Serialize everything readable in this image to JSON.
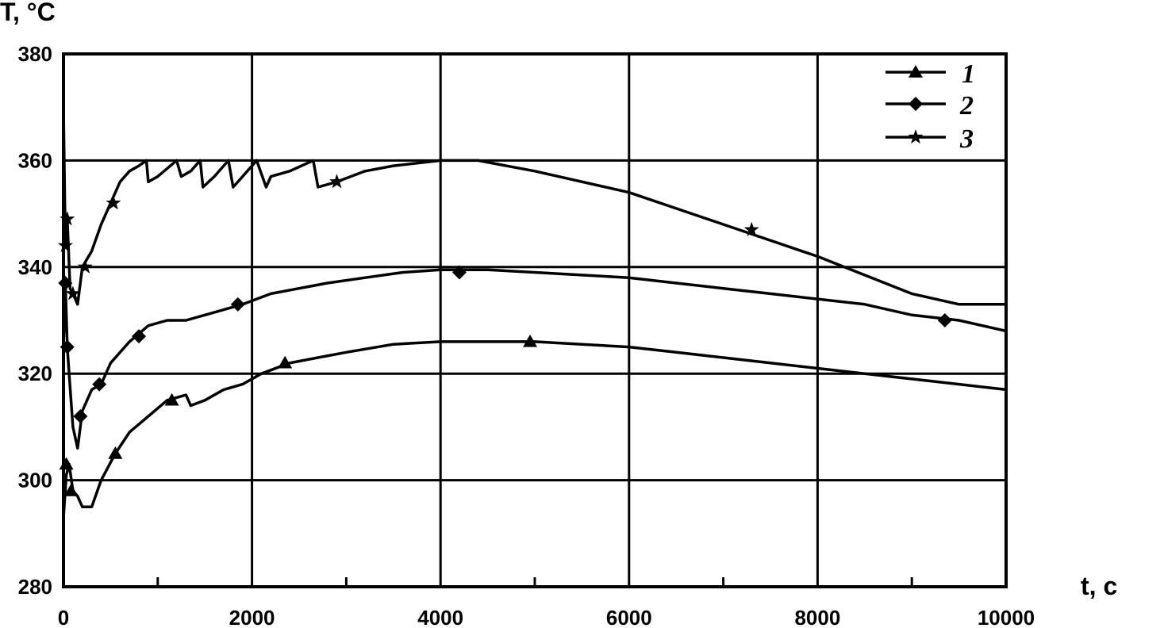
{
  "chart_data": {
    "type": "line",
    "ylabel": "T, °C",
    "xlabel": "t, c",
    "xlim": [
      0,
      10000
    ],
    "ylim": [
      280,
      380
    ],
    "x_ticks": [
      0,
      2000,
      4000,
      6000,
      8000,
      10000
    ],
    "y_ticks": [
      280,
      300,
      320,
      340,
      360,
      380
    ],
    "x_tick_labels": [
      "0",
      "2000",
      "4000",
      "6000",
      "8000",
      "10000"
    ],
    "y_tick_labels": [
      "280",
      "300",
      "320",
      "340",
      "360",
      "380"
    ],
    "grid": true,
    "legend_position": "top-right",
    "series": [
      {
        "name": "1",
        "marker": "triangle",
        "x": [
          0,
          30,
          60,
          100,
          150,
          200,
          300,
          400,
          550,
          700,
          900,
          1100,
          1300,
          1350,
          1500,
          1700,
          1900,
          2100,
          2400,
          2700,
          3000,
          3500,
          4000,
          4500,
          5000,
          5500,
          6000,
          6500,
          7000,
          7500,
          8000,
          8500,
          9000,
          9500,
          10000
        ],
        "y": [
          293,
          301,
          303,
          298,
          297,
          295,
          295,
          300,
          305,
          309,
          312,
          315,
          316,
          314,
          315,
          317,
          318,
          320,
          322,
          323,
          324,
          325.5,
          326,
          326,
          326,
          325.5,
          325,
          324,
          323,
          322,
          321,
          320,
          319,
          318,
          317
        ],
        "marker_x": [
          30,
          80,
          550,
          1150,
          2350,
          4950
        ],
        "marker_y": [
          303,
          298,
          305,
          315,
          322,
          326
        ]
      },
      {
        "name": "2",
        "marker": "diamond",
        "x": [
          0,
          20,
          40,
          60,
          100,
          150,
          200,
          300,
          400,
          500,
          700,
          900,
          1100,
          1300,
          1500,
          1700,
          1900,
          2200,
          2500,
          2800,
          3200,
          3600,
          4000,
          4500,
          5000,
          5500,
          6000,
          6500,
          7000,
          7500,
          8000,
          8500,
          9000,
          9500,
          10000
        ],
        "y": [
          325,
          337,
          325,
          320,
          310,
          306,
          313,
          317,
          318,
          322,
          326,
          329,
          330,
          330,
          331,
          332,
          333,
          335,
          336,
          337,
          338,
          339,
          339.5,
          339.5,
          339,
          338.5,
          338,
          337,
          336,
          335,
          334,
          333,
          331,
          330,
          328
        ],
        "marker_x": [
          20,
          40,
          180,
          380,
          800,
          1850,
          4200,
          9350
        ],
        "marker_y": [
          337,
          325,
          312,
          318,
          327,
          333,
          339,
          330
        ]
      },
      {
        "name": "3",
        "marker": "star",
        "x": [
          0,
          20,
          40,
          70,
          100,
          150,
          200,
          300,
          400,
          500,
          600,
          700,
          800,
          880,
          900,
          1000,
          1200,
          1250,
          1350,
          1450,
          1480,
          1600,
          1750,
          1800,
          1900,
          2050,
          2150,
          2200,
          2400,
          2650,
          2700,
          2900,
          3200,
          3500,
          4000,
          4400,
          5000,
          6000,
          7000,
          8000,
          9000,
          9500,
          10000
        ],
        "y": [
          370,
          344,
          349,
          336,
          335,
          333,
          340,
          343,
          348,
          352,
          356,
          358,
          359,
          360,
          356,
          357,
          360,
          357,
          358,
          360,
          355,
          357,
          360,
          355,
          357,
          360,
          355,
          357,
          358,
          360,
          355,
          356,
          358,
          359,
          360,
          360,
          358,
          354,
          348,
          342,
          335,
          333,
          333
        ],
        "marker_x": [
          20,
          40,
          100,
          230,
          530,
          2900,
          7300
        ],
        "marker_y": [
          344,
          349,
          335,
          340,
          352,
          356,
          347
        ]
      }
    ],
    "legend": [
      {
        "label": "1",
        "marker": "triangle"
      },
      {
        "label": "2",
        "marker": "diamond"
      },
      {
        "label": "3",
        "marker": "star"
      }
    ]
  }
}
